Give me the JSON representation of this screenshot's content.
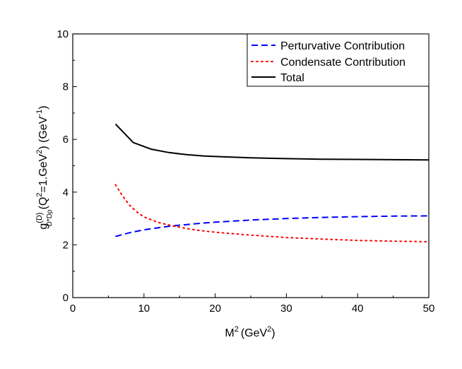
{
  "chart_data": {
    "type": "line",
    "xlabel": {
      "base": "M",
      "sup": "2",
      "paren": "(GeV",
      "paren_sup": "2",
      "close": ")"
    },
    "ylabel": {
      "g": "g",
      "g_sup": "(D)",
      "g_sub": "D*Dρ",
      "q_open": "(Q",
      "q_sup": "2",
      "q_mid": "=1.GeV",
      "q_mid_sup": "2",
      "q_close": ") (GeV",
      "unit_sup": "-1",
      "unit_close": ")"
    },
    "xlim": [
      0,
      50
    ],
    "ylim": [
      0,
      10
    ],
    "x_ticks": [
      "0",
      "10",
      "20",
      "30",
      "40",
      "50"
    ],
    "x_tick_values": [
      0,
      10,
      20,
      30,
      40,
      50
    ],
    "y_ticks": [
      "0",
      "2",
      "4",
      "6",
      "8",
      "10"
    ],
    "y_tick_values": [
      0,
      2,
      4,
      6,
      8,
      10
    ],
    "grid": false,
    "legend_position": "top-right",
    "series": [
      {
        "name": "Perturvative Contribution",
        "color": "#0000ff",
        "style": "dashed",
        "x": [
          6,
          8,
          10,
          12,
          14,
          16,
          18,
          20,
          25,
          30,
          35,
          40,
          45,
          50
        ],
        "y": [
          2.32,
          2.46,
          2.57,
          2.65,
          2.72,
          2.77,
          2.82,
          2.86,
          2.94,
          3.0,
          3.04,
          3.07,
          3.09,
          3.1
        ]
      },
      {
        "name": "Condensate Contribution",
        "color": "#ff0000",
        "style": "dotted",
        "x": [
          6,
          7,
          8,
          9,
          10,
          12,
          14,
          16,
          18,
          20,
          25,
          30,
          35,
          40,
          45,
          50
        ],
        "y": [
          4.28,
          3.85,
          3.5,
          3.25,
          3.06,
          2.85,
          2.72,
          2.62,
          2.54,
          2.48,
          2.37,
          2.28,
          2.22,
          2.17,
          2.14,
          2.12
        ]
      },
      {
        "name": "Total",
        "color": "#000000",
        "style": "solid",
        "x": [
          6,
          8.5,
          11,
          13.5,
          16,
          18.5,
          21,
          25,
          30,
          35,
          40,
          45,
          50
        ],
        "y": [
          6.58,
          5.88,
          5.63,
          5.5,
          5.42,
          5.37,
          5.34,
          5.3,
          5.27,
          5.25,
          5.24,
          5.23,
          5.22
        ]
      }
    ]
  }
}
